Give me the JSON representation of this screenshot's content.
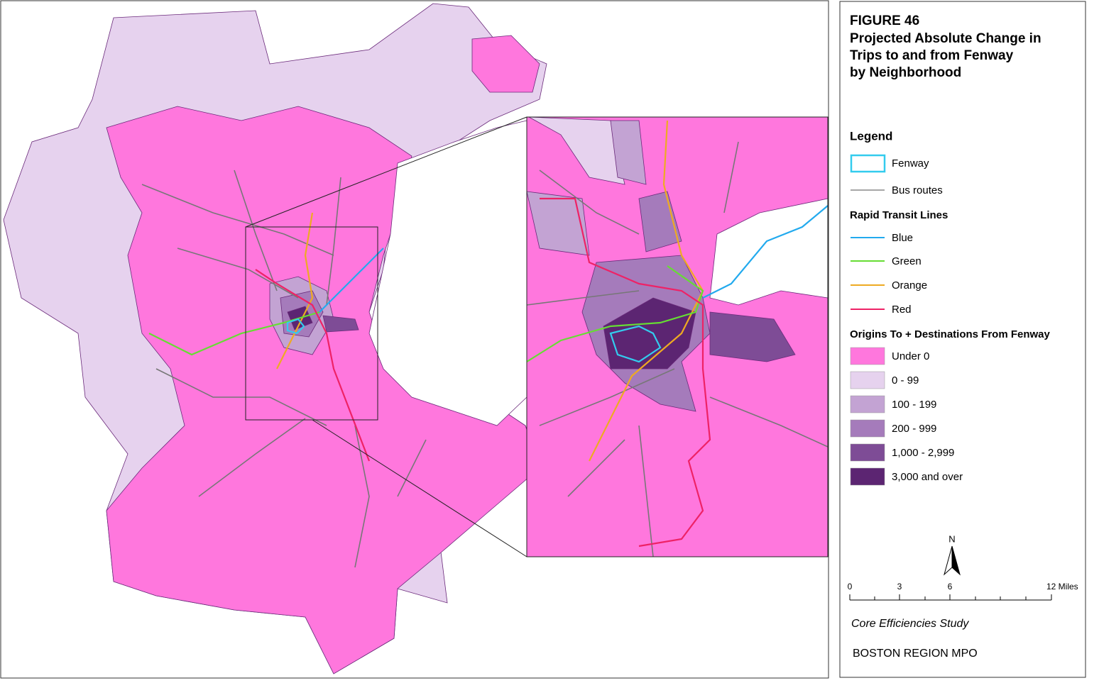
{
  "header": {
    "title": "FIGURE 46",
    "subtitle_lines": [
      "Projected Absolute Change in",
      "Trips to and from Fenway",
      "by Neighborhood"
    ]
  },
  "legend": {
    "title": "Legend",
    "fenway": {
      "label": "Fenway",
      "color": "#33ccee"
    },
    "bus": {
      "label": "Bus routes",
      "color": "#888888"
    },
    "transit": {
      "title": "Rapid Transit Lines",
      "lines": [
        {
          "label": "Blue",
          "color": "#22aaee"
        },
        {
          "label": "Green",
          "color": "#66dd33"
        },
        {
          "label": "Orange",
          "color": "#eeaa22"
        },
        {
          "label": "Red",
          "color": "#ee2266"
        }
      ]
    },
    "origins": {
      "title": "Origins To + Destinations From Fenway",
      "classes": [
        {
          "label": "Under 0",
          "color": "#ff77dd"
        },
        {
          "label": "0 - 99",
          "color": "#e6d2ee"
        },
        {
          "label": "100 - 199",
          "color": "#c3a3d3"
        },
        {
          "label": "200 - 999",
          "color": "#a57bbb"
        },
        {
          "label": "1,000 - 2,999",
          "color": "#7e4c96"
        },
        {
          "label": "3,000 and over",
          "color": "#5c2572"
        }
      ]
    }
  },
  "north_label": "N",
  "scale_bar": {
    "labels": [
      "0",
      "3",
      "6",
      "12 Miles"
    ]
  },
  "footer": {
    "study": "Core Efficiencies Study",
    "org": "BOSTON REGION MPO"
  }
}
